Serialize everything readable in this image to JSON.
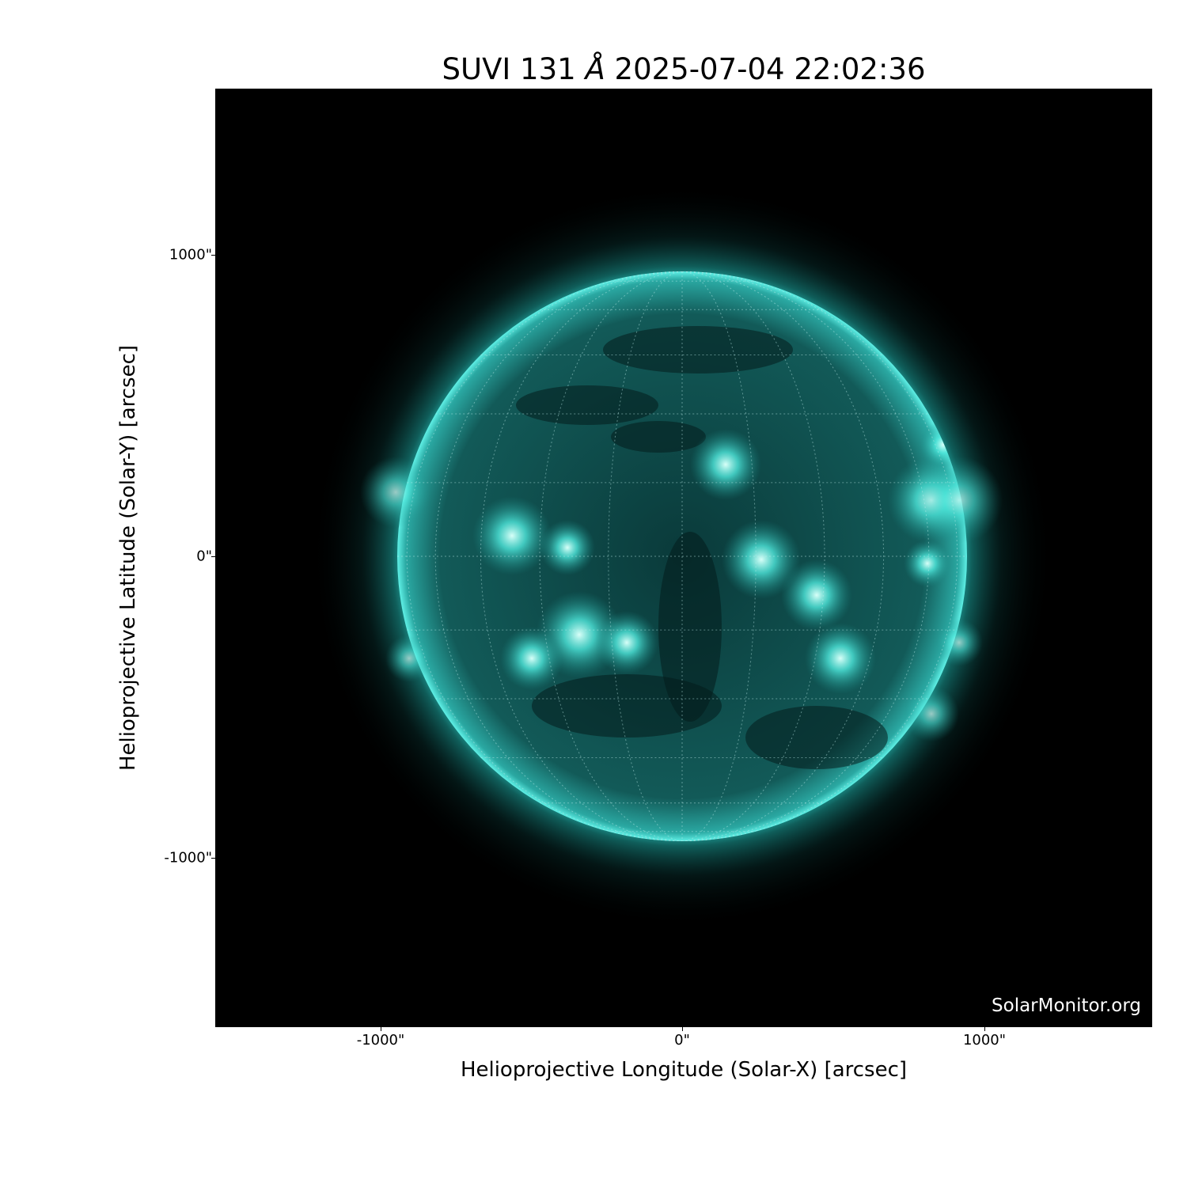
{
  "title": {
    "instrument": "SUVI 131",
    "unit": "Å",
    "datetime": "2025-07-04 22:02:36"
  },
  "watermark": "SolarMonitor.org",
  "chart_data": {
    "type": "heatmap",
    "title": "SUVI 131 Å 2025-07-04 22:02:36",
    "xlabel": "Helioprojective Longitude (Solar-X) [arcsec]",
    "ylabel": "Helioprojective Latitude (Solar-Y) [arcsec]",
    "xlim": [
      -1550,
      1550
    ],
    "ylim": [
      -1550,
      1550
    ],
    "xticks": [
      {
        "value": -1000,
        "label": "-1000\""
      },
      {
        "value": 0,
        "label": "0\""
      },
      {
        "value": 1000,
        "label": "1000\""
      }
    ],
    "yticks": [
      {
        "value": 1000,
        "label": "1000\""
      },
      {
        "value": 0,
        "label": "0\""
      },
      {
        "value": -1000,
        "label": "-1000\""
      }
    ],
    "colormap": "black-to-cyan",
    "colors": {
      "background": "#000000",
      "disk": "#0e5a5a",
      "bright": "#7ffff0"
    },
    "solar_radius_arcsec": 944,
    "grid": {
      "style": "dotted",
      "spacing_deg": 15
    }
  }
}
